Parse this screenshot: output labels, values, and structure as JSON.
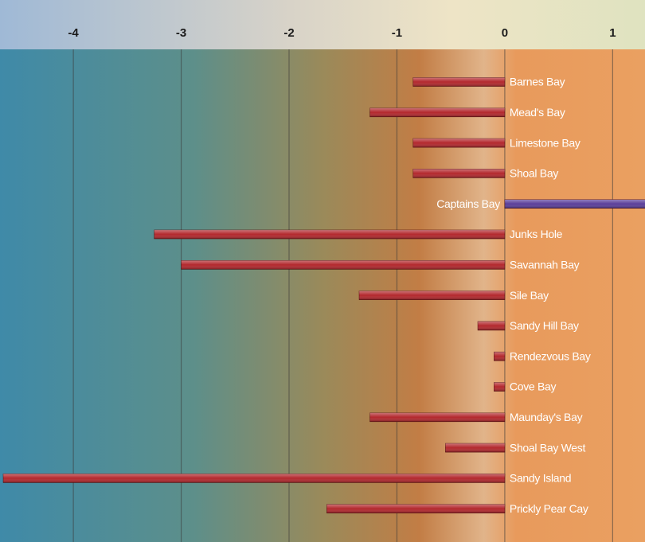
{
  "chart_data": {
    "type": "bar",
    "orientation": "horizontal",
    "categories": [
      "Barnes Bay",
      "Mead's Bay",
      "Limestone Bay",
      "Shoal Bay",
      "Captains Bay",
      "Junks Hole",
      "Savannah Bay",
      "Sile Bay",
      "Sandy Hill Bay",
      "Rendezvous Bay",
      "Cove Bay",
      "Maunday's Bay",
      "Shoal Bay West",
      "Sandy Island",
      "Prickly Pear Cay"
    ],
    "values": [
      -0.85,
      -1.25,
      -0.85,
      -0.85,
      1.5,
      -3.25,
      -3.0,
      -1.35,
      -0.25,
      -0.1,
      -0.1,
      -1.25,
      -0.55,
      -4.65,
      -1.65
    ],
    "color": "#b3282d",
    "positive_color": "#5b3f9a",
    "xlim": [
      -4.68,
      1.3
    ],
    "xticks": [
      -4,
      -3,
      -2,
      -1,
      0,
      1
    ],
    "grid": true
  }
}
